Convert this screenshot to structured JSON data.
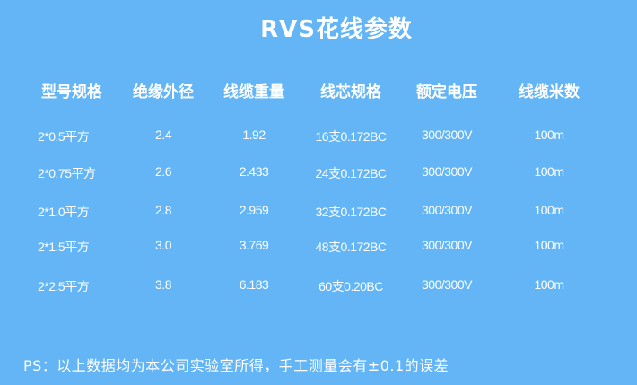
{
  "title": "RVS花线参数",
  "headers": [
    "型号规格",
    "绝缘外径",
    "线缆重量",
    "线芯规格",
    "额定电压",
    "线缆米数"
  ],
  "rows": [
    [
      "2*0.5平方",
      "2.4",
      "1.92",
      "16支0.172BC",
      "300/300V",
      "100m"
    ],
    [
      "2*0.75平方",
      "2.6",
      "2.433",
      "24支0.172BC",
      "300/300V",
      "100m"
    ],
    [
      "2*1.0平方",
      "2.8",
      "2.959",
      "32支0.172BC",
      "300/300V",
      "100m"
    ],
    [
      "2*1.5平方",
      "3.0",
      "3.769",
      "48支0.172BC",
      "300/300V",
      "100m"
    ],
    [
      "2*2.5平方",
      "3.8",
      "6.183",
      "60支0.20BC",
      "300/300V",
      "100m"
    ]
  ],
  "note": "PS：以上数据均为本公司实验室所得，手工测量会有±0.1的误差",
  "colors": {
    "background": "#64b5f6",
    "text": "#ffffff"
  }
}
